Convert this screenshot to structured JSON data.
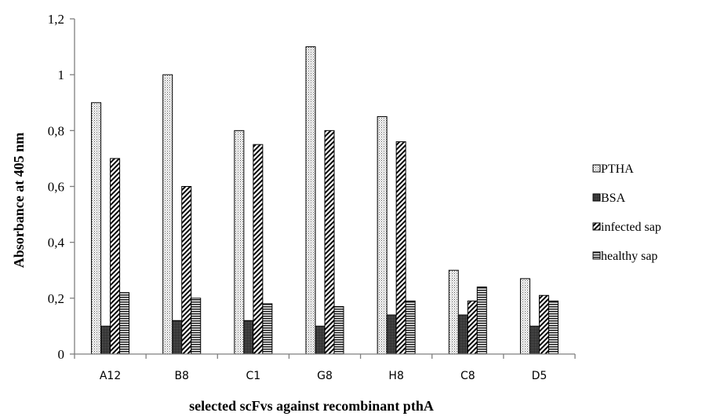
{
  "chart_data": {
    "type": "bar",
    "title": "",
    "xlabel": "selected scFvs against recombinant pthA",
    "ylabel": "Absorbance at 405 nm",
    "ylim": [
      0,
      1.2
    ],
    "yticks": [
      "0",
      "0,2",
      "0,4",
      "0,6",
      "0,8",
      "1",
      "1,2"
    ],
    "categories": [
      "A12",
      "B8",
      "C1",
      "G8",
      "H8",
      "C8",
      "D5"
    ],
    "series": [
      {
        "name": "PTHA",
        "values": [
          0.9,
          1.0,
          0.8,
          1.1,
          0.85,
          0.3,
          0.27
        ],
        "pattern": "dots"
      },
      {
        "name": "BSA",
        "values": [
          0.1,
          0.12,
          0.12,
          0.1,
          0.14,
          0.14,
          0.1
        ],
        "pattern": "dense"
      },
      {
        "name": "infected sap",
        "values": [
          0.7,
          0.6,
          0.75,
          0.8,
          0.76,
          0.19,
          0.21
        ],
        "pattern": "diag"
      },
      {
        "name": "healthy sap",
        "values": [
          0.22,
          0.2,
          0.18,
          0.17,
          0.19,
          0.24,
          0.19
        ],
        "pattern": "horiz"
      }
    ],
    "grid": false,
    "legend_position": "right"
  }
}
